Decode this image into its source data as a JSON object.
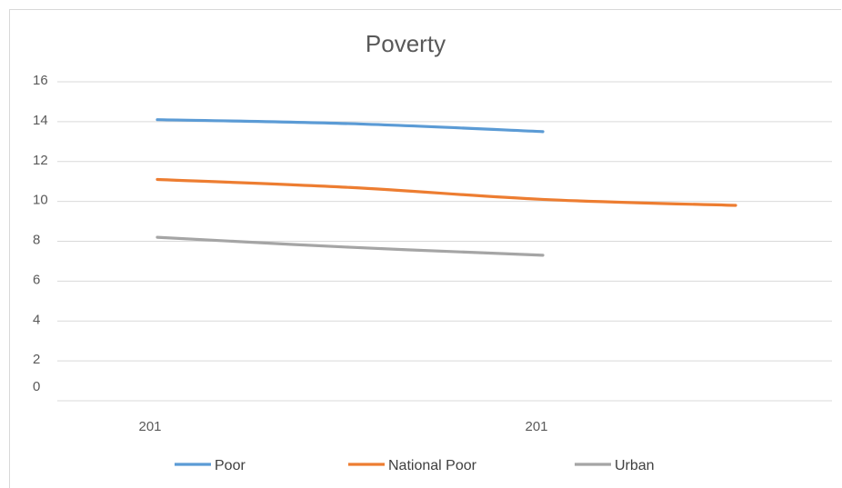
{
  "chart_data": {
    "type": "line",
    "title": "Poverty",
    "x_tick_labels": [
      "201",
      "201"
    ],
    "y_tick_labels": [
      "0",
      "2",
      "4",
      "6",
      "8",
      "10",
      "12",
      "14",
      "16"
    ],
    "ylim": [
      0,
      16
    ],
    "grid": true,
    "legend_position": "bottom",
    "series": [
      {
        "name": "Poor",
        "color": "#5b9bd5",
        "values": [
          14.1,
          13.9,
          13.5,
          null
        ]
      },
      {
        "name": "National Poor",
        "color": "#ed7d31",
        "values": [
          11.1,
          10.7,
          10.1,
          9.8
        ]
      },
      {
        "name": "Urban",
        "color": "#a5a5a5",
        "values": [
          8.2,
          7.7,
          7.3,
          null
        ]
      }
    ]
  }
}
